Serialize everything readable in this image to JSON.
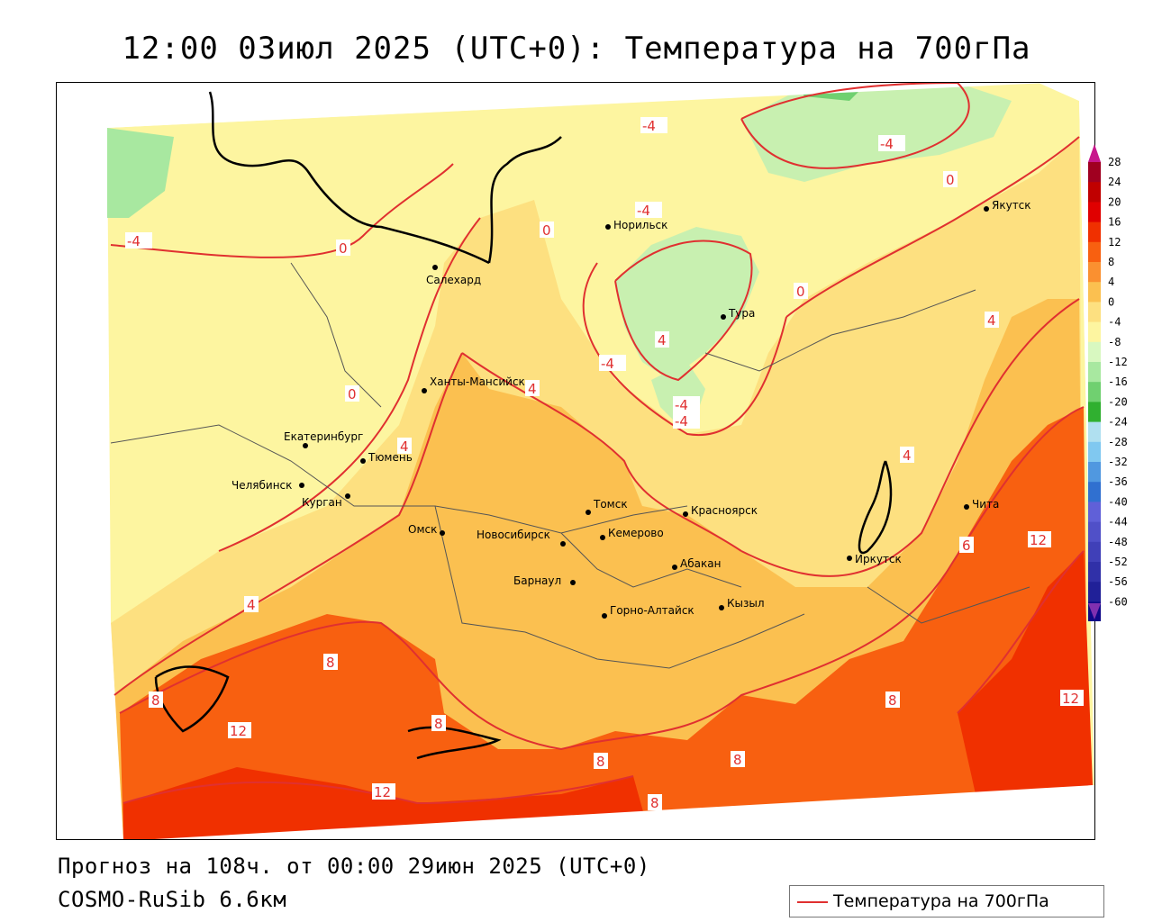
{
  "title": "12:00 03июл 2025 (UTC+0): Температура на 700гПа",
  "forecast_text": "Прогноз на 108ч. от 00:00 29июн 2025 (UTC+0)",
  "model_text": "COSMO-RuSib 6.6км",
  "legend": {
    "label": "Температура на 700гПа",
    "line_color": "#e03030"
  },
  "cities": [
    {
      "name": "Якутск"
    },
    {
      "name": "Норильск"
    },
    {
      "name": "Салехард"
    },
    {
      "name": "Тура"
    },
    {
      "name": "Ханты-Мансийск"
    },
    {
      "name": "Екатеринбург"
    },
    {
      "name": "Тюмень"
    },
    {
      "name": "Челябинск"
    },
    {
      "name": "Курган"
    },
    {
      "name": "Томск"
    },
    {
      "name": "Красноярск"
    },
    {
      "name": "Омск"
    },
    {
      "name": "Новосибирск"
    },
    {
      "name": "Кемерово"
    },
    {
      "name": "Абакан"
    },
    {
      "name": "Барнаул"
    },
    {
      "name": "Горно-Алтайск"
    },
    {
      "name": "Кызыл"
    },
    {
      "name": "Иркутск"
    },
    {
      "name": "Чита"
    }
  ],
  "isotherm_labels": [
    "-4",
    "-4",
    "-4",
    "0",
    "-4",
    "0",
    "0",
    "-4",
    "4",
    "-4",
    "-4",
    "0",
    "4",
    "0",
    "4",
    "4",
    "4",
    "8",
    "8",
    "12",
    "4",
    "8",
    "8",
    "12",
    "8",
    "8",
    "12",
    "12",
    "6"
  ],
  "colorbar": {
    "ticks": [
      "28",
      "24",
      "20",
      "16",
      "12",
      "8",
      "4",
      "0",
      "-4",
      "-8",
      "-12",
      "-16",
      "-20",
      "-24",
      "-28",
      "-32",
      "-36",
      "-40",
      "-44",
      "-48",
      "-52",
      "-56",
      "-60"
    ],
    "colors": [
      "#a00020",
      "#c00000",
      "#e00000",
      "#f03000",
      "#f86010",
      "#fa9030",
      "#fbc050",
      "#fde080",
      "#fdf5a0",
      "#d8f8c0",
      "#a8e8a0",
      "#70d070",
      "#30b030",
      "#b0e0f0",
      "#80c8f0",
      "#5098e0",
      "#3070d0",
      "#6060d8",
      "#5050c8",
      "#4040b8",
      "#3030a8",
      "#202098",
      "#100888"
    ],
    "top_color": "#c8188c",
    "bottom_color": "#8030b0"
  },
  "colors": {
    "pale_yellow": "#fdf5a0",
    "yellow": "#fde080",
    "light_orange": "#fbc050",
    "orange": "#fa9030",
    "deep_orange": "#f86010",
    "red_orange": "#f03000",
    "light_green": "#c8f0b0",
    "green": "#80d880",
    "isotherm": "#e03030"
  }
}
